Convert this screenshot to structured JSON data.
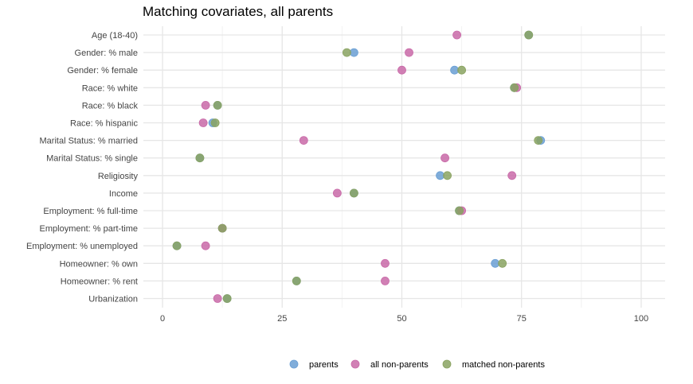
{
  "chart_data": {
    "type": "scatter",
    "title": "Matching covariates, all parents",
    "xlabel": "",
    "ylabel": "",
    "xlim": [
      -4,
      105
    ],
    "xticks": [
      0,
      25,
      50,
      75,
      100
    ],
    "xtick_labels": [
      "0",
      "25",
      "50",
      "75",
      "100"
    ],
    "grid": true,
    "legend_position": "bottom",
    "categories": [
      "Age (18-40)",
      "Gender: % male",
      "Gender: % female",
      "Race: % white",
      "Race: % black",
      "Race: % hispanic",
      "Marital Status: % married",
      "Marital Status: % single",
      "Religiosity",
      "Income",
      "Employment: % full-time",
      "Employment: % part-time",
      "Employment: % unemployed",
      "Homeowner: % own",
      "Homeowner: % rent",
      "Urbanization"
    ],
    "series": [
      {
        "name": "parents",
        "color": "#6a9fd4",
        "values": [
          76.5,
          40.0,
          61.0,
          73.5,
          11.5,
          10.5,
          79.0,
          7.8,
          58.0,
          40.0,
          62.0,
          12.5,
          3.0,
          69.5,
          28.0,
          13.5
        ]
      },
      {
        "name": "all non-parents",
        "color": "#c96aa8",
        "values": [
          61.5,
          51.5,
          50.0,
          74.0,
          9.0,
          8.5,
          29.5,
          59.0,
          73.0,
          36.5,
          62.5,
          12.5,
          9.0,
          46.5,
          46.5,
          11.5
        ]
      },
      {
        "name": "matched non-parents",
        "color": "#8aa361",
        "values": [
          76.5,
          38.5,
          62.5,
          73.5,
          11.5,
          11.0,
          78.5,
          7.8,
          59.5,
          40.0,
          62.0,
          12.5,
          3.0,
          71.0,
          28.0,
          13.5
        ]
      }
    ]
  }
}
